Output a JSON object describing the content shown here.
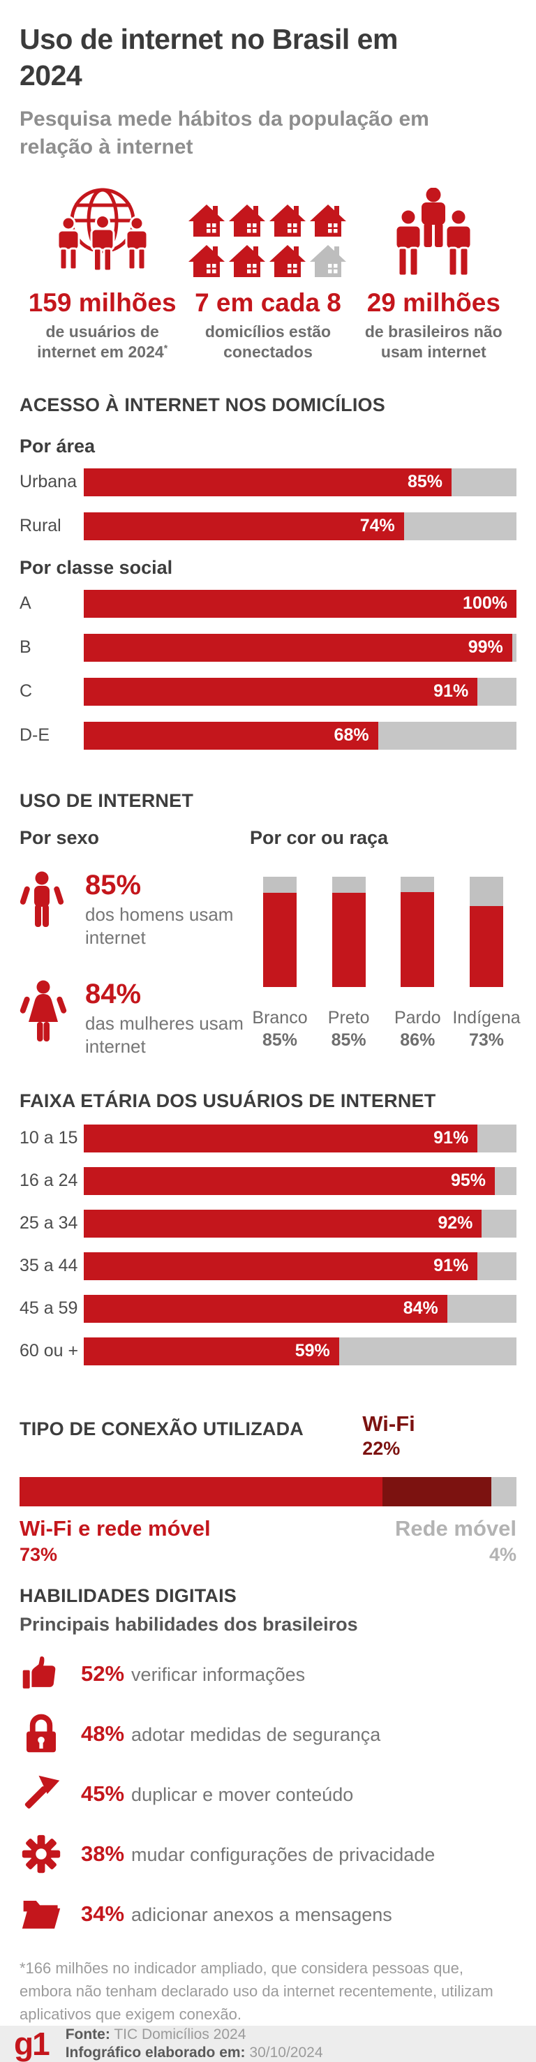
{
  "header": {
    "title": "Uso de internet no Brasil em 2024",
    "subtitle": "Pesquisa mede hábitos da população em relação à internet"
  },
  "colors": {
    "red": "#c4161c",
    "dark_red": "#7c1210",
    "bar_track_gray": "#c6c6c6",
    "heading_gray": "#3d3d3d",
    "muted_gray": "#8e8e8e",
    "footer_bg": "#ededed"
  },
  "stats": {
    "items": [
      {
        "icon": "globe-users-icon",
        "value": "159 milhões",
        "label": "de usuários de internet em 2024",
        "sup": "*"
      },
      {
        "icon": "connected-houses-icon",
        "value": "7 em cada 8",
        "label": "domicílios estão conectados",
        "sup": ""
      },
      {
        "icon": "family-icon",
        "value": "29 milhões",
        "label": "de brasileiros não usam internet",
        "sup": ""
      }
    ]
  },
  "access": {
    "heading": "ACESSO À INTERNET NOS DOMICÍLIOS",
    "by_area": {
      "heading": "Por área",
      "rows": [
        {
          "label": "Urbana",
          "value": 85,
          "value_text": "85%"
        },
        {
          "label": "Rural",
          "value": 74,
          "value_text": "74%"
        }
      ]
    },
    "by_class": {
      "heading": "Por classe social",
      "rows": [
        {
          "label": "A",
          "value": 100,
          "value_text": "100%"
        },
        {
          "label": "B",
          "value": 99,
          "value_text": "99%"
        },
        {
          "label": "C",
          "value": 91,
          "value_text": "91%"
        },
        {
          "label": "D-E",
          "value": 68,
          "value_text": "68%"
        }
      ]
    }
  },
  "usage": {
    "heading": "USO DE INTERNET",
    "by_sex": {
      "heading": "Por sexo",
      "rows": [
        {
          "icon": "man-icon",
          "value_text": "85%",
          "label": "dos homens usam internet"
        },
        {
          "icon": "woman-icon",
          "value_text": "84%",
          "label": "das mulheres usam internet"
        }
      ]
    },
    "by_race": {
      "heading": "Por cor ou raça",
      "bars": [
        {
          "label": "Branco",
          "value": 85,
          "value_text": "85%"
        },
        {
          "label": "Preto",
          "value": 85,
          "value_text": "85%"
        },
        {
          "label": "Pardo",
          "value": 86,
          "value_text": "86%"
        },
        {
          "label": "Indígena",
          "value": 73,
          "value_text": "73%"
        }
      ]
    }
  },
  "age": {
    "heading": "FAIXA ETÁRIA DOS USUÁRIOS DE INTERNET",
    "rows": [
      {
        "label": "10 a 15",
        "value": 91,
        "value_text": "91%"
      },
      {
        "label": "16 a 24",
        "value": 95,
        "value_text": "95%"
      },
      {
        "label": "25 a 34",
        "value": 92,
        "value_text": "92%"
      },
      {
        "label": "35 a 44",
        "value": 91,
        "value_text": "91%"
      },
      {
        "label": "45 a 59",
        "value": 84,
        "value_text": "84%"
      },
      {
        "label": "60 ou +",
        "value": 59,
        "value_text": "59%"
      }
    ]
  },
  "connection": {
    "heading": "TIPO DE CONEXÃO UTILIZADA",
    "segments": [
      {
        "label": "Wi-Fi e rede móvel",
        "value": 73,
        "value_text": "73%"
      },
      {
        "label": "Wi-Fi",
        "value": 22,
        "value_text": "22%"
      },
      {
        "label": "Rede móvel",
        "value": 4,
        "value_text": "4%"
      }
    ]
  },
  "skills": {
    "heading": "HABILIDADES DIGITAIS",
    "subheading": "Principais habilidades dos brasileiros",
    "rows": [
      {
        "icon": "thumbs-up-icon",
        "value_text": "52%",
        "label": "verificar informações"
      },
      {
        "icon": "padlock-icon",
        "value_text": "48%",
        "label": "adotar medidas de segurança"
      },
      {
        "icon": "cursor-arrow-icon",
        "value_text": "45%",
        "label": "duplicar e mover conteúdo"
      },
      {
        "icon": "gear-icon",
        "value_text": "38%",
        "label": "mudar configurações de privacidade"
      },
      {
        "icon": "folder-icon",
        "value_text": "34%",
        "label": "adicionar anexos a mensagens"
      }
    ]
  },
  "footnote": {
    "text": "*166 milhões no indicador ampliado, que considera pessoas que, embora não tenham declarado uso da internet recentemente, utilizam aplicativos que exigem conexão."
  },
  "footer": {
    "logo": "g1",
    "source_label": "Fonte:",
    "source_value": "TIC Domicílios 2024",
    "date_label": "Infográfico elaborado em:",
    "date_value": "30/10/2024"
  },
  "chart_data": [
    {
      "type": "bar",
      "orientation": "horizontal",
      "title": "Acesso à internet nos domicílios — Por área",
      "categories": [
        "Urbana",
        "Rural"
      ],
      "values": [
        85,
        74
      ],
      "unit": "%",
      "xlim": [
        0,
        100
      ],
      "grid": false,
      "bar_color": "#c4161c",
      "track_color": "#c6c6c6"
    },
    {
      "type": "bar",
      "orientation": "horizontal",
      "title": "Acesso à internet nos domicílios — Por classe social",
      "categories": [
        "A",
        "B",
        "C",
        "D-E"
      ],
      "values": [
        100,
        99,
        91,
        68
      ],
      "unit": "%",
      "xlim": [
        0,
        100
      ],
      "grid": false
    },
    {
      "type": "bar",
      "orientation": "vertical",
      "title": "Uso de internet — Por sexo",
      "categories": [
        "Homens",
        "Mulheres"
      ],
      "values": [
        85,
        84
      ],
      "unit": "%"
    },
    {
      "type": "bar",
      "orientation": "vertical",
      "title": "Uso de internet — Por cor ou raça",
      "categories": [
        "Branco",
        "Preto",
        "Pardo",
        "Indígena"
      ],
      "values": [
        85,
        85,
        86,
        73
      ],
      "unit": "%",
      "ylim": [
        0,
        100
      ],
      "grid": false
    },
    {
      "type": "bar",
      "orientation": "horizontal",
      "title": "Faixa etária dos usuários de internet",
      "categories": [
        "10 a 15",
        "16 a 24",
        "25 a 34",
        "35 a 44",
        "45 a 59",
        "60 ou +"
      ],
      "values": [
        91,
        95,
        92,
        91,
        84,
        59
      ],
      "unit": "%",
      "xlim": [
        0,
        100
      ],
      "grid": false
    },
    {
      "type": "bar",
      "subtype": "stacked",
      "orientation": "horizontal",
      "title": "Tipo de conexão utilizada",
      "categories": [
        "Wi-Fi e rede móvel",
        "Wi-Fi",
        "Rede móvel"
      ],
      "values": [
        73,
        22,
        4
      ],
      "unit": "%",
      "colors": [
        "#c4161c",
        "#7c1210",
        "#c6c6c6"
      ]
    },
    {
      "type": "bar",
      "orientation": "horizontal",
      "title": "Habilidades digitais — Principais habilidades dos brasileiros",
      "categories": [
        "verificar informações",
        "adotar medidas de segurança",
        "duplicar e mover conteúdo",
        "mudar configurações de privacidade",
        "adicionar anexos a mensagens"
      ],
      "values": [
        52,
        48,
        45,
        38,
        34
      ],
      "unit": "%"
    }
  ]
}
